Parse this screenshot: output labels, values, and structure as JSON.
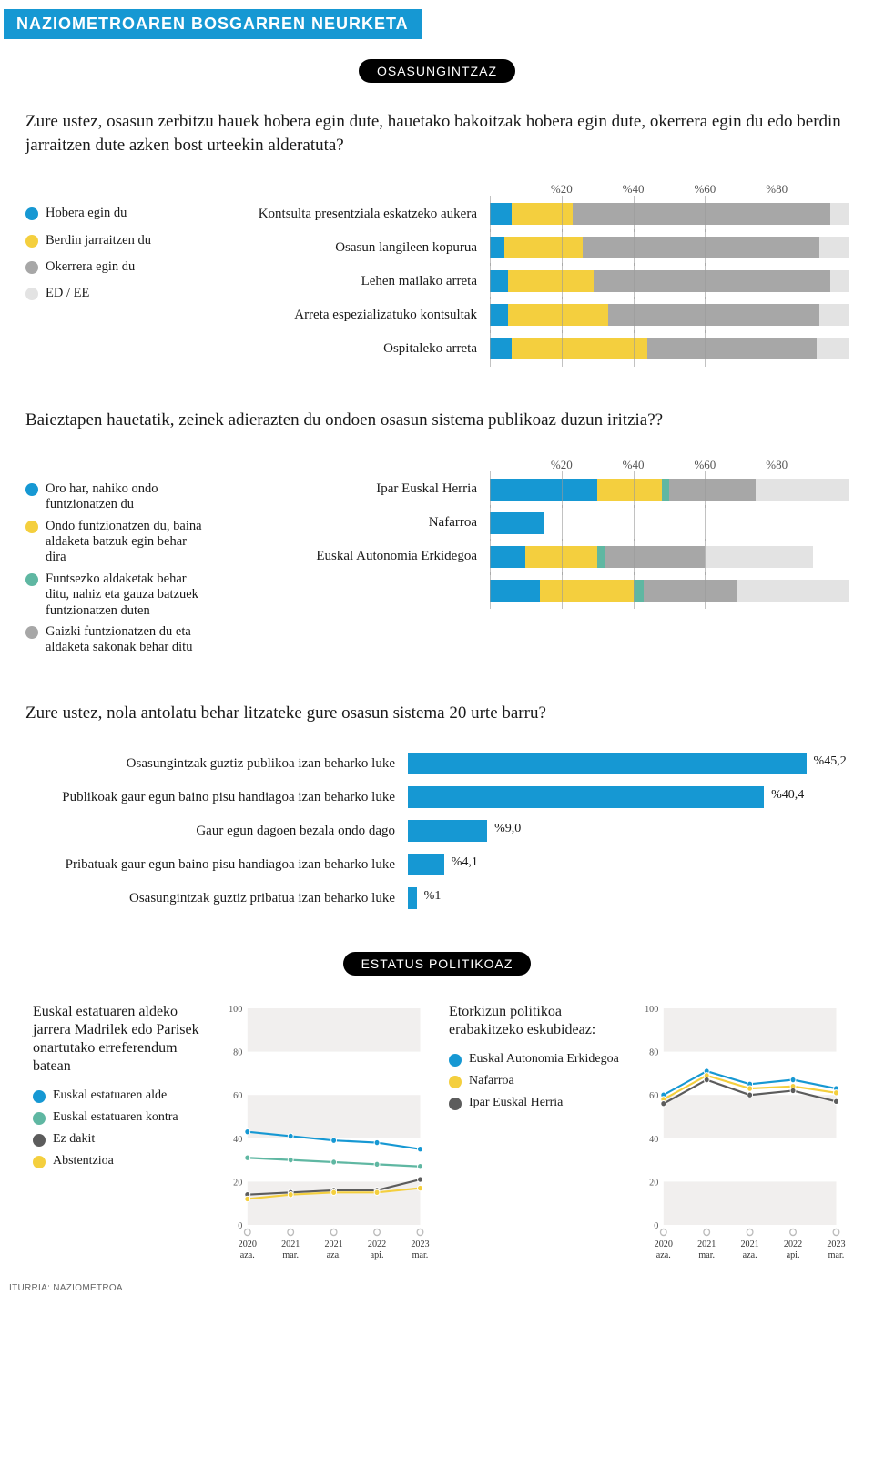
{
  "colors": {
    "blue": "#1698d3",
    "yellow": "#f4cf3e",
    "teal": "#5fb7a2",
    "gray": "#a7a7a7",
    "lightgray": "#e3e3e3",
    "darkgray": "#5c5c5c",
    "axis": "#aaaaaa",
    "gridband": "#f1efee"
  },
  "header": "NAZIOMETROAREN BOSGARREN NEURKETA",
  "section1_pill": "OSASUNGINTZAZ",
  "q1": {
    "text": "Zure ustez, osasun zerbitzu hauek hobera egin dute, hauetako bakoitzak hobera egin dute, okerrera egin du edo berdin jarraitzen dute azken bost urteekin alderatuta?",
    "legend": [
      {
        "label": "Hobera egin du",
        "color": "blue"
      },
      {
        "label": "Berdin jarraitzen du",
        "color": "yellow"
      },
      {
        "label": "Okerrera egin du",
        "color": "gray"
      },
      {
        "label": "ED / EE",
        "color": "lightgray"
      }
    ],
    "axis_labels": [
      "%20",
      "%40",
      "%60",
      "%80"
    ],
    "axis_positions": [
      20,
      40,
      60,
      80
    ],
    "rows": [
      {
        "label": "Kontsulta presentziala eskatzeko aukera",
        "segs": [
          6,
          17,
          72,
          5
        ]
      },
      {
        "label": "Osasun langileen kopurua",
        "segs": [
          4,
          22,
          66,
          8
        ]
      },
      {
        "label": "Lehen mailako arreta",
        "segs": [
          5,
          24,
          66,
          5
        ]
      },
      {
        "label": "Arreta espezializatuko kontsultak",
        "segs": [
          5,
          28,
          59,
          8
        ]
      },
      {
        "label": "Ospitaleko arreta",
        "segs": [
          6,
          38,
          47,
          9
        ]
      }
    ]
  },
  "q2": {
    "text": "Baieztapen hauetatik, zeinek adierazten du ondoen osasun sistema publikoaz duzun iritzia??",
    "legend": [
      {
        "label": "Oro har, nahiko ondo funtzionatzen du",
        "color": "blue"
      },
      {
        "label": "Ondo funtzionatzen du, baina aldaketa batzuk egin behar dira",
        "color": "yellow"
      },
      {
        "label": "Funtsezko aldaketak behar ditu, nahiz eta gauza batzuek funtzionatzen duten",
        "color": "teal"
      },
      {
        "label": "Gaizki funtzionatzen du eta aldaketa sakonak behar ditu",
        "color": "gray"
      }
    ],
    "axis_labels": [
      "%20",
      "%40",
      "%60",
      "%80"
    ],
    "axis_positions": [
      20,
      40,
      60,
      80
    ],
    "rows": [
      {
        "label": "Ipar Euskal Herria",
        "segs": [
          30,
          18,
          2,
          24,
          26
        ]
      },
      {
        "label": "Nafarroa",
        "segs": [
          15,
          0,
          0,
          0,
          0
        ]
      },
      {
        "label": "Euskal Autonomia Erkidegoa",
        "segs": [
          10,
          20,
          2,
          28,
          30
        ],
        "offset": true
      }
    ],
    "extra_row": {
      "segs": [
        14,
        26,
        3,
        26,
        31
      ]
    }
  },
  "q3": {
    "text": "Zure ustez, nola antolatu behar litzateke gure osasun sistema 20 urte barru?",
    "rows": [
      {
        "label": "Osasungintzak guztiz publikoa izan beharko luke",
        "v": 45.2,
        "disp": "%45,2"
      },
      {
        "label": "Publikoak gaur egun baino pisu handiagoa izan beharko luke",
        "v": 40.4,
        "disp": "%40,4"
      },
      {
        "label": "Gaur egun dagoen bezala ondo dago",
        "v": 9.0,
        "disp": "%9,0"
      },
      {
        "label": "Pribatuak gaur egun baino pisu handiagoa izan beharko luke",
        "v": 4.1,
        "disp": "%4,1"
      },
      {
        "label": "Osasungintzak guztiz pribatua izan beharko luke",
        "v": 1.0,
        "disp": "%1"
      }
    ],
    "max": 50
  },
  "section2_pill": "ESTATUS POLITIKOAZ",
  "panelA": {
    "title": "Euskal estatuaren aldeko jarrera Madrilek edo Parisek onartutako erreferendum batean",
    "legend": [
      {
        "label": "Euskal estatuaren alde",
        "color": "blue"
      },
      {
        "label": "Euskal estatuaren kontra",
        "color": "teal"
      },
      {
        "label": "Ez dakit",
        "color": "darkgray"
      },
      {
        "label": "Abstentzioa",
        "color": "yellow"
      }
    ],
    "y_ticks": [
      0,
      20,
      40,
      60,
      80,
      100
    ],
    "x_labels": [
      "2020\naza.",
      "2021\nmar.",
      "2021\naza.",
      "2022\napi.",
      "2023\nmar."
    ],
    "series": [
      {
        "color": "blue",
        "vals": [
          43,
          41,
          39,
          38,
          35
        ]
      },
      {
        "color": "teal",
        "vals": [
          31,
          30,
          29,
          28,
          27
        ]
      },
      {
        "color": "darkgray",
        "vals": [
          14,
          15,
          16,
          16,
          21
        ]
      },
      {
        "color": "yellow",
        "vals": [
          12,
          14,
          15,
          15,
          17
        ]
      }
    ]
  },
  "panelB": {
    "title": "Etorkizun politikoa erabakitzeko eskubideaz:",
    "legend": [
      {
        "label": "Euskal Autonomia Erkidegoa",
        "color": "blue"
      },
      {
        "label": "Nafarroa",
        "color": "yellow"
      },
      {
        "label": "Ipar Euskal Herria",
        "color": "darkgray"
      }
    ],
    "y_ticks": [
      0,
      20,
      40,
      60,
      80,
      100
    ],
    "x_labels": [
      "2020\naza.",
      "2021\nmar.",
      "2021\naza.",
      "2022\napi.",
      "2023\nmar."
    ],
    "series": [
      {
        "color": "blue",
        "vals": [
          60,
          71,
          65,
          67,
          63
        ]
      },
      {
        "color": "yellow",
        "vals": [
          58,
          69,
          63,
          64,
          61
        ]
      },
      {
        "color": "darkgray",
        "vals": [
          56,
          67,
          60,
          62,
          57
        ]
      }
    ]
  },
  "source": "ITURRIA: NAZIOMETROA"
}
